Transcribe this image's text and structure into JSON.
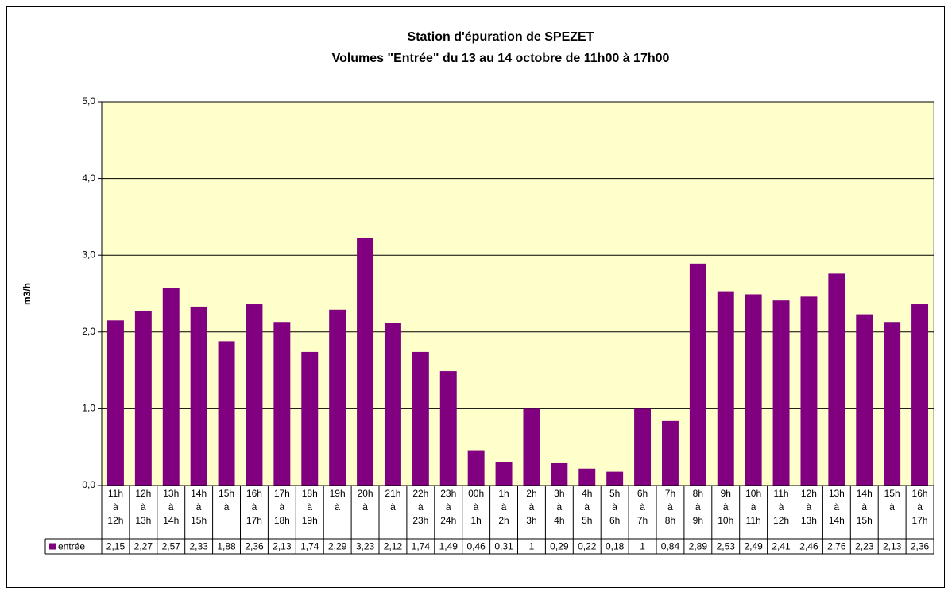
{
  "chart_data": {
    "type": "bar",
    "title": [
      "Station d'épuration de SPEZET",
      "Volumes \"Entrée\" du 13 au 14 octobre de 11h00 à 17h00"
    ],
    "y_label": "m3/h",
    "categories": [
      [
        "11h",
        "à",
        "12h"
      ],
      [
        "12h",
        "à",
        "13h"
      ],
      [
        "13h",
        "à",
        "14h"
      ],
      [
        "14h",
        "à",
        "15h"
      ],
      [
        "15h",
        "à"
      ],
      [
        "16h",
        "à",
        "17h"
      ],
      [
        "17h",
        "à",
        "18h"
      ],
      [
        "18h",
        "à",
        "19h"
      ],
      [
        "19h",
        "à"
      ],
      [
        "20h",
        "à"
      ],
      [
        "21h",
        "à"
      ],
      [
        "22h",
        "à",
        "23h"
      ],
      [
        "23h",
        "à",
        "24h"
      ],
      [
        "00h",
        "à",
        "1h"
      ],
      [
        "1h",
        "à",
        "2h"
      ],
      [
        "2h",
        "à",
        "3h"
      ],
      [
        "3h",
        "à",
        "4h"
      ],
      [
        "4h",
        "à",
        "5h"
      ],
      [
        "5h",
        "à",
        "6h"
      ],
      [
        "6h",
        "à",
        "7h"
      ],
      [
        "7h",
        "à",
        "8h"
      ],
      [
        "8h",
        "à",
        "9h"
      ],
      [
        "9h",
        "à",
        "10h"
      ],
      [
        "10h",
        "à",
        "11h"
      ],
      [
        "11h",
        "à",
        "12h"
      ],
      [
        "12h",
        "à",
        "13h"
      ],
      [
        "13h",
        "à",
        "14h"
      ],
      [
        "14h",
        "à",
        "15h"
      ],
      [
        "15h",
        "à"
      ],
      [
        "16h",
        "à",
        "17h"
      ]
    ],
    "series": [
      {
        "name": "entrée",
        "color": "#800080",
        "values": [
          2.15,
          2.27,
          2.57,
          2.33,
          1.88,
          2.36,
          2.13,
          1.74,
          2.29,
          3.23,
          2.12,
          1.74,
          1.49,
          0.46,
          0.31,
          1,
          0.29,
          0.22,
          0.18,
          1,
          0.84,
          2.89,
          2.53,
          2.49,
          2.41,
          2.46,
          2.76,
          2.23,
          2.13,
          2.36
        ],
        "value_labels": [
          "2,15",
          "2,27",
          "2,57",
          "2,33",
          "1,88",
          "2,36",
          "2,13",
          "1,74",
          "2,29",
          "3,23",
          "2,12",
          "1,74",
          "1,49",
          "0,46",
          "0,31",
          "1",
          "0,29",
          "0,22",
          "0,18",
          "1",
          "0,84",
          "2,89",
          "2,53",
          "2,49",
          "2,41",
          "2,46",
          "2,76",
          "2,23",
          "2,13",
          "2,36"
        ]
      }
    ],
    "ylim": [
      0,
      5
    ],
    "yticks": [
      {
        "value": 0,
        "label": "0,0"
      },
      {
        "value": 1,
        "label": "1,0"
      },
      {
        "value": 2,
        "label": "2,0"
      },
      {
        "value": 3,
        "label": "3,0"
      },
      {
        "value": 4,
        "label": "4,0"
      },
      {
        "value": 5,
        "label": "5,0"
      }
    ],
    "grid": true,
    "plot_background": "#ffffcc"
  }
}
